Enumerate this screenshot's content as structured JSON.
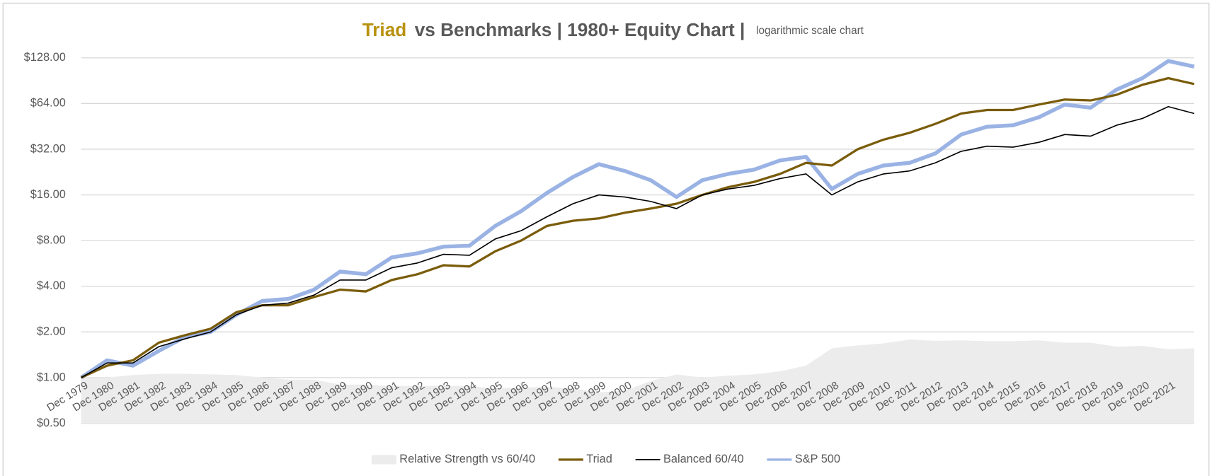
{
  "chart_data": {
    "type": "line",
    "title_highlight": "Triad",
    "title": "vs Benchmarks | 1980+ Equity Chart |",
    "subtitle": "logarithmic scale chart",
    "log_scale": true,
    "grid": true,
    "legend": "bottom",
    "title_highlight_color": "#b8910c",
    "categories": [
      "Dec 1979",
      "Dec 1980",
      "Dec 1981",
      "Dec 1982",
      "Dec 1983",
      "Dec 1984",
      "Dec 1985",
      "Dec 1986",
      "Dec 1987",
      "Dec 1988",
      "Dec 1989",
      "Dec 1990",
      "Dec 1991",
      "Dec 1992",
      "Dec 1993",
      "Dec 1994",
      "Dec 1995",
      "Dec 1996",
      "Dec 1997",
      "Dec 1998",
      "Dec 1999",
      "Dec 2000",
      "Dec 2001",
      "Dec 2002",
      "Dec 2003",
      "Dec 2004",
      "Dec 2005",
      "Dec 2006",
      "Dec 2007",
      "Dec 2008",
      "Dec 2009",
      "Dec 2010",
      "Dec 2011",
      "Dec 2012",
      "Dec 2013",
      "Dec 2014",
      "Dec 2015",
      "Dec 2016",
      "Dec 2017",
      "Dec 2018",
      "Dec 2019",
      "Dec 2020",
      "Dec 2021",
      null
    ],
    "ylim": [
      0.5,
      152
    ],
    "yticks": [
      {
        "value": 0.5,
        "label": "$0.50"
      },
      {
        "value": 1,
        "label": "$1.00"
      },
      {
        "value": 2,
        "label": "$2.00"
      },
      {
        "value": 4,
        "label": "$4.00"
      },
      {
        "value": 8,
        "label": "$8.00"
      },
      {
        "value": 16,
        "label": "$16.00"
      },
      {
        "value": 32,
        "label": "$32.00"
      },
      {
        "value": 64,
        "label": "$64.00"
      },
      {
        "value": 128,
        "label": "$128.00"
      }
    ],
    "series": [
      {
        "name": "Relative Strength vs 60/40",
        "kind": "area",
        "color": "#ececec",
        "values": [
          1.0,
          1.0,
          1.04,
          1.06,
          1.06,
          1.05,
          1.04,
          1.0,
          0.97,
          0.97,
          0.9,
          0.9,
          0.88,
          0.88,
          0.88,
          0.88,
          0.85,
          0.86,
          0.87,
          0.85,
          0.8,
          0.82,
          0.95,
          1.05,
          1.0,
          1.03,
          1.05,
          1.1,
          1.2,
          1.56,
          1.63,
          1.68,
          1.78,
          1.75,
          1.76,
          1.74,
          1.74,
          1.76,
          1.7,
          1.7,
          1.6,
          1.62,
          1.54,
          1.56
        ]
      },
      {
        "name": "Triad",
        "kind": "line",
        "color": "#7a5c0a",
        "width": 3,
        "values": [
          1.0,
          1.2,
          1.3,
          1.7,
          1.9,
          2.1,
          2.7,
          3.0,
          3.0,
          3.4,
          3.8,
          3.7,
          4.4,
          4.8,
          5.5,
          5.4,
          6.8,
          8,
          10,
          10.8,
          11.2,
          12.2,
          13,
          14,
          16,
          18,
          19.5,
          22,
          26,
          25,
          32,
          37,
          41,
          47,
          55,
          58,
          58,
          63,
          68,
          67,
          73,
          85,
          94,
          86
        ]
      },
      {
        "name": "Balanced 60/40",
        "kind": "line",
        "color": "#000000",
        "width": 1.5,
        "values": [
          1.0,
          1.25,
          1.25,
          1.6,
          1.8,
          2.0,
          2.6,
          3.0,
          3.1,
          3.5,
          4.4,
          4.4,
          5.3,
          5.7,
          6.5,
          6.4,
          8.2,
          9.3,
          11.5,
          14,
          16,
          15.5,
          14.5,
          13,
          16,
          17.5,
          18.5,
          20.5,
          22,
          16,
          19.5,
          22,
          23,
          26,
          31,
          33.5,
          33,
          35.5,
          40,
          39,
          46,
          51,
          61,
          55
        ]
      },
      {
        "name": "S&P 500",
        "kind": "line",
        "color": "#9ab3e4",
        "width": 5,
        "values": [
          1.0,
          1.3,
          1.2,
          1.5,
          1.85,
          2.0,
          2.6,
          3.2,
          3.3,
          3.8,
          5.0,
          4.8,
          6.2,
          6.6,
          7.3,
          7.4,
          10,
          12.5,
          16.5,
          21,
          25.5,
          23,
          20,
          15.5,
          20,
          22,
          23.5,
          27,
          28.5,
          17.5,
          22,
          25,
          26,
          30,
          40,
          45,
          46,
          52,
          63,
          60,
          79,
          94,
          122,
          112
        ]
      }
    ],
    "draw_order": [
      0,
      3,
      1,
      2
    ]
  }
}
